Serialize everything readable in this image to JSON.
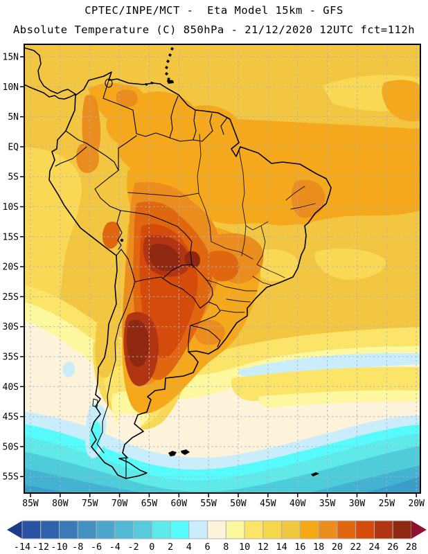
{
  "title": {
    "line1": "CPTEC/INPE/MCT -  Eta Model 15km - GFS",
    "line2": "Absolute Temperature (C) 850hPa - 21/12/2020 12UTC fct=112h"
  },
  "axes": {
    "lat": [
      "15N",
      "10N",
      "5N",
      "EQ",
      "5S",
      "10S",
      "15S",
      "20S",
      "25S",
      "30S",
      "35S",
      "40S",
      "45S",
      "50S",
      "55S"
    ],
    "lon": [
      "85W",
      "80W",
      "75W",
      "70W",
      "65W",
      "60W",
      "55W",
      "50W",
      "45W",
      "40W",
      "35W",
      "30W",
      "25W",
      "20W"
    ]
  },
  "colorbar": {
    "tick_labels": [
      "-14",
      "-12",
      "-10",
      "-8",
      "-6",
      "-4",
      "-2",
      "0",
      "2",
      "4",
      "6",
      "8",
      "10",
      "12",
      "14",
      "16",
      "18",
      "20",
      "22",
      "24",
      "26",
      "28"
    ],
    "segment_colors": [
      "#2a52a2",
      "#2e63ac",
      "#3a7ab8",
      "#4590c2",
      "#4da5cc",
      "#53b8d3",
      "#57cbdb",
      "#5fe9e9",
      "#57fbfb",
      "#c9edfb",
      "#fcf3da",
      "#fdf7a0",
      "#fbe468",
      "#f7d84d",
      "#f2c843",
      "#f5a915",
      "#ea8c1e",
      "#e0670f",
      "#d44b0c",
      "#b23513",
      "#8f2811"
    ],
    "left_arrow_color": "#1c3d8c",
    "right_arrow_color": "#8e1230"
  },
  "palette": {
    "gold14": "#f3c642",
    "gold12": "#f8d854",
    "yellow10": "#fbe468",
    "paleyellow8": "#fdf7a0",
    "cream6": "#fcf3da",
    "paleblue4": "#c9edfb",
    "cyan2": "#57fbfb",
    "cyan0": "#5fe9e9",
    "turq_m2": "#4fccd9",
    "blue_m4": "#43b3d1",
    "blue_m6": "#3b9dc8",
    "orange16": "#f5a81c",
    "orange18": "#ea8c1e",
    "orange20": "#e0670f",
    "red22": "#d44b0c",
    "red24": "#b23513",
    "red26": "#8f2811",
    "grid": "#aab2c2",
    "geo": "#000000",
    "frame": "#000000",
    "text": "#000000"
  }
}
